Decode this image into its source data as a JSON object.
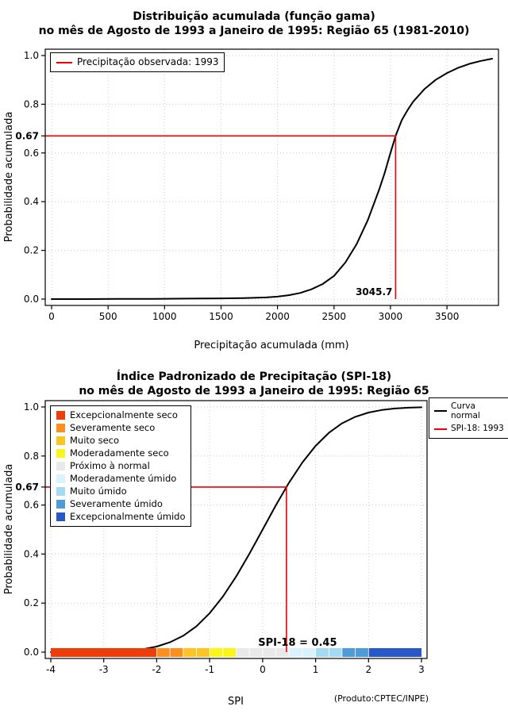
{
  "page": {
    "background": "#ffffff",
    "text_color": "#000000"
  },
  "chart_data": [
    {
      "type": "line",
      "title": "Distribuição acumulada (função gama)",
      "subtitle": "no mês de Agosto de 1993 a Janeiro de 1995: Região 65 (1981-2010)",
      "xlabel": "Precipitação acumulada (mm)",
      "ylabel": "Probabilidade acumulada",
      "xlim": [
        0,
        3900
      ],
      "ylim": [
        0,
        1
      ],
      "grid": true,
      "curve_color": "#000000",
      "marker_color": "#ee0000",
      "xticks": [
        {
          "v": 0,
          "l": "0"
        },
        {
          "v": 500,
          "l": "500"
        },
        {
          "v": 1000,
          "l": "1000"
        },
        {
          "v": 1500,
          "l": "1500"
        },
        {
          "v": 2000,
          "l": "2000"
        },
        {
          "v": 2500,
          "l": "2500"
        },
        {
          "v": 3000,
          "l": "3000"
        },
        {
          "v": 3500,
          "l": "3500"
        }
      ],
      "yticks": [
        {
          "v": 0,
          "l": "0.0"
        },
        {
          "v": 0.2,
          "l": "0.2"
        },
        {
          "v": 0.4,
          "l": "0.4"
        },
        {
          "v": 0.6,
          "l": "0.6"
        },
        {
          "v": 0.8,
          "l": "0.8"
        },
        {
          "v": 1,
          "l": "1.0"
        }
      ],
      "series": [
        {
          "points": [
            [
              0,
              0
            ],
            [
              300,
              0
            ],
            [
              600,
              0.001
            ],
            [
              900,
              0.001
            ],
            [
              1200,
              0.002
            ],
            [
              1500,
              0.003
            ],
            [
              1700,
              0.004
            ],
            [
              1900,
              0.007
            ],
            [
              2000,
              0.01
            ],
            [
              2100,
              0.016
            ],
            [
              2200,
              0.025
            ],
            [
              2300,
              0.04
            ],
            [
              2400,
              0.062
            ],
            [
              2500,
              0.095
            ],
            [
              2600,
              0.15
            ],
            [
              2700,
              0.225
            ],
            [
              2800,
              0.325
            ],
            [
              2900,
              0.45
            ],
            [
              2950,
              0.52
            ],
            [
              3000,
              0.6
            ],
            [
              3045.7,
              0.67
            ],
            [
              3100,
              0.735
            ],
            [
              3150,
              0.775
            ],
            [
              3200,
              0.81
            ],
            [
              3300,
              0.862
            ],
            [
              3400,
              0.9
            ],
            [
              3500,
              0.928
            ],
            [
              3600,
              0.95
            ],
            [
              3700,
              0.966
            ],
            [
              3800,
              0.978
            ],
            [
              3900,
              0.987
            ]
          ]
        }
      ],
      "marker": {
        "x": 3045.7,
        "y": 0.67,
        "x_label": "3045.7",
        "y_label": "0.67"
      },
      "legend": [
        {
          "label": "Precipitação observada: 1993",
          "color": "#ee0000"
        }
      ]
    },
    {
      "type": "line",
      "title": "Índice Padronizado de Precipitação (SPI-18)",
      "subtitle": "no mês de Agosto de 1993 a Janeiro de 1995: Região 65",
      "xlabel": "SPI",
      "ylabel": "Probabilidade acumulada",
      "xlim": [
        -4,
        3
      ],
      "ylim": [
        0,
        1
      ],
      "grid": true,
      "curve_color": "#000000",
      "marker_color": "#ee0000",
      "xticks": [
        {
          "v": -4,
          "l": "-4"
        },
        {
          "v": -3,
          "l": "-3"
        },
        {
          "v": -2,
          "l": "-2"
        },
        {
          "v": -1,
          "l": "-1"
        },
        {
          "v": 0,
          "l": "0"
        },
        {
          "v": 1,
          "l": "1"
        },
        {
          "v": 2,
          "l": "2"
        },
        {
          "v": 3,
          "l": "3"
        }
      ],
      "yticks": [
        {
          "v": 0,
          "l": "0.0"
        },
        {
          "v": 0.2,
          "l": "0.2"
        },
        {
          "v": 0.4,
          "l": "0.4"
        },
        {
          "v": 0.6,
          "l": "0.6"
        },
        {
          "v": 0.8,
          "l": "0.8"
        },
        {
          "v": 1,
          "l": "1.0"
        }
      ],
      "series": [
        {
          "name": "Curva normal",
          "points": [
            [
              -4,
              0.0
            ],
            [
              -3.75,
              0.0001
            ],
            [
              -3.5,
              0.0002
            ],
            [
              -3.25,
              0.0006
            ],
            [
              -3,
              0.0013
            ],
            [
              -2.75,
              0.003
            ],
            [
              -2.5,
              0.0062
            ],
            [
              -2.25,
              0.0122
            ],
            [
              -2,
              0.0228
            ],
            [
              -1.75,
              0.0401
            ],
            [
              -1.5,
              0.0668
            ],
            [
              -1.25,
              0.1056
            ],
            [
              -1,
              0.1587
            ],
            [
              -0.75,
              0.2266
            ],
            [
              -0.5,
              0.3085
            ],
            [
              -0.25,
              0.4013
            ],
            [
              0,
              0.5
            ],
            [
              0.25,
              0.5987
            ],
            [
              0.45,
              0.6736
            ],
            [
              0.5,
              0.6915
            ],
            [
              0.75,
              0.7734
            ],
            [
              1,
              0.8413
            ],
            [
              1.25,
              0.8944
            ],
            [
              1.5,
              0.9332
            ],
            [
              1.75,
              0.9599
            ],
            [
              2,
              0.9772
            ],
            [
              2.25,
              0.9878
            ],
            [
              2.5,
              0.9938
            ],
            [
              2.75,
              0.997
            ],
            [
              3,
              0.9987
            ]
          ]
        }
      ],
      "marker": {
        "x": 0.45,
        "y": 0.6736,
        "y_label": "0.67",
        "annotation": "SPI-18 = 0.45"
      },
      "legend": [
        {
          "label": "Curva normal",
          "color": "#000000"
        },
        {
          "label": "SPI-18: 1993",
          "color": "#ee0000"
        }
      ],
      "categories": [
        {
          "label": "Excepcionalmente seco",
          "color": "#ee3d0c",
          "from": -4,
          "to": -2
        },
        {
          "label": "Severamente seco",
          "color": "#fd8f20",
          "from": -2,
          "to": -1.5
        },
        {
          "label": "Muito seco",
          "color": "#fdc428",
          "from": -1.5,
          "to": -1
        },
        {
          "label": "Moderadamente seco",
          "color": "#faf51b",
          "from": -1,
          "to": -0.5
        },
        {
          "label": "Próximo à normal",
          "color": "#e9e9e9",
          "from": -0.5,
          "to": 0.5
        },
        {
          "label": "Moderadamente úmido",
          "color": "#d9f2fb",
          "from": 0.5,
          "to": 1
        },
        {
          "label": "Muito úmido",
          "color": "#a5daf3",
          "from": 1,
          "to": 1.5
        },
        {
          "label": "Severamente úmido",
          "color": "#4e9bd8",
          "from": 1.5,
          "to": 2
        },
        {
          "label": "Excepcionalmente úmido",
          "color": "#2857c8",
          "from": 2,
          "to": 3
        }
      ],
      "footnote": "(Produto:CPTEC/INPE)"
    }
  ]
}
